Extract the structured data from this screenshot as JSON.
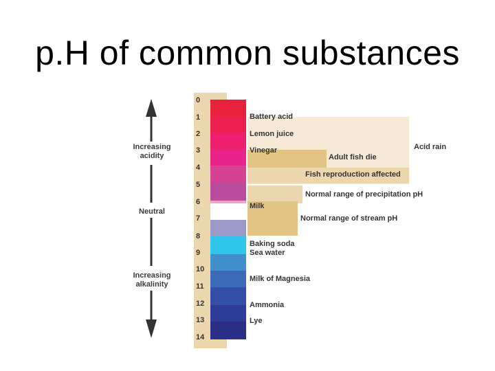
{
  "title": "p.H of common substances",
  "side_labels": {
    "acidity": "Increasing\nacidity",
    "neutral": "Neutral",
    "alkalinity": "Increasing\nalkalinity"
  },
  "scale": [
    "0",
    "1",
    "2",
    "3",
    "4",
    "5",
    "6",
    "7",
    "8",
    "9",
    "10",
    "11",
    "12",
    "13",
    "14"
  ],
  "colors": [
    "#e8223c",
    "#ec1f4e",
    "#ee1f6e",
    "#e8248a",
    "#d64392",
    "#b94c9c",
    "#f4a0c6",
    "#ffffff",
    "#9d98c8",
    "#30c6ec",
    "#3e8fcc",
    "#3b6ab8",
    "#344fa6",
    "#2d3c99",
    "#2a2f85"
  ],
  "substances": {
    "battery_acid": "Battery acid",
    "lemon_juice": "Lemon juice",
    "vinegar": "Vinegar",
    "milk": "Milk",
    "baking_soda": "Baking soda",
    "sea_water": "Sea water",
    "milk_of_magnesia": "Milk of Magnesia",
    "ammonia": "Ammonia",
    "lye": "Lye"
  },
  "ranges": {
    "acid_rain": "Acid rain",
    "adult_fish_die": "Adult fish die",
    "fish_reproduction": "Fish reproduction affected",
    "precipitation": "Normal range of precipitation pH",
    "stream": "Normal range of stream pH"
  },
  "band_colors": {
    "light": "#f6ead7",
    "medium": "#ecd6ae",
    "dark": "#e2c485"
  }
}
